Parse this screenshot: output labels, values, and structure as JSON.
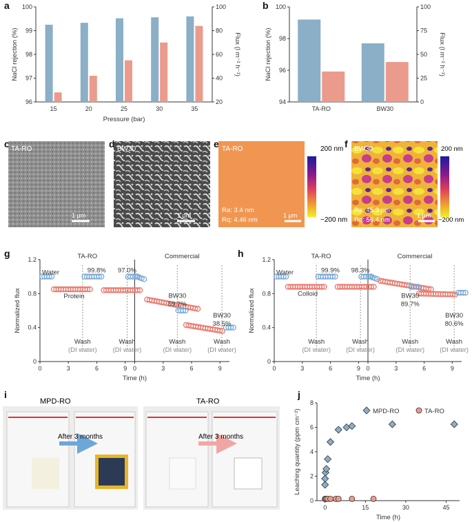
{
  "colors": {
    "blue": "#8aafc6",
    "salmon": "#eb9b8b",
    "water": "#7aa9d4",
    "protein": "#e8766a",
    "photo_bg": "#efefef"
  },
  "panel_labels": [
    "a",
    "b",
    "c",
    "d",
    "e",
    "f",
    "g",
    "h",
    "i",
    "j"
  ],
  "chart_data": [
    {
      "id": "a",
      "type": "bar",
      "categories": [
        "15",
        "20",
        "25",
        "30",
        "35"
      ],
      "xlabel": "Pressure (bar)",
      "ylabel": "NaCl rejection (%)",
      "ylim": [
        96,
        100
      ],
      "yticks": [
        "96",
        "97",
        "98",
        "99",
        "100"
      ],
      "y2label": "Flux (l m⁻² h⁻¹)",
      "y2lim": [
        20,
        100
      ],
      "y2ticks": [
        "20",
        "40",
        "60",
        "80",
        "100"
      ],
      "series": [
        {
          "name": "NaCl rejection",
          "axis": "left",
          "values": [
            99.25,
            99.33,
            99.52,
            99.56,
            99.6
          ]
        },
        {
          "name": "Flux",
          "axis": "right",
          "values": [
            28,
            42,
            55,
            70,
            84
          ]
        }
      ]
    },
    {
      "id": "b",
      "type": "bar",
      "categories": [
        "TA-RO",
        "BW30"
      ],
      "ylabel": "NaCl rejection (%)",
      "ylim": [
        94,
        100
      ],
      "yticks": [
        "94",
        "96",
        "98",
        "100"
      ],
      "y2label": "Flux (l m⁻² h⁻¹)",
      "y2lim": [
        0,
        100
      ],
      "y2ticks": [
        "0",
        "25",
        "50",
        "75",
        "100"
      ],
      "series": [
        {
          "name": "NaCl rejection",
          "axis": "left",
          "values": [
            99.2,
            97.7
          ]
        },
        {
          "name": "Flux",
          "axis": "right",
          "values": [
            32,
            42
          ]
        }
      ]
    },
    {
      "id": "g",
      "type": "scatter",
      "xlabel": "Time (h)",
      "ylabel": "Normalized flux",
      "ylim": [
        0,
        1.2
      ],
      "yticks": [
        "0",
        "0.4",
        "0.8",
        "1.2"
      ],
      "xticks": [
        "0",
        "3",
        "6",
        "9",
        "0",
        "3",
        "6",
        "9"
      ],
      "sections": [
        "TA-RO",
        "Commercial"
      ],
      "legend": [
        "Water",
        "Protein"
      ],
      "annotations": [
        "99.8%",
        "97.0%",
        "BW30",
        "59.2%",
        "BW30",
        "38.5%"
      ],
      "wash": [
        "Wash",
        "(DI water)"
      ],
      "series": [
        {
          "name": "Water",
          "values": [
            1.0,
            1.0,
            1.0
          ]
        },
        {
          "name": "Protein",
          "values": [
            0.85,
            0.84,
            0.83
          ]
        },
        {
          "name": "Commercial water",
          "values": [
            1.0,
            0.6,
            0.4
          ]
        },
        {
          "name": "Commercial protein",
          "values": [
            0.73,
            0.62,
            0.43,
            0.36
          ]
        }
      ]
    },
    {
      "id": "h",
      "type": "scatter",
      "xlabel": "Time (h)",
      "ylabel": "Normalized flux",
      "ylim": [
        0,
        1.2
      ],
      "yticks": [
        "0",
        "0.4",
        "0.8",
        "1.2"
      ],
      "xticks": [
        "0",
        "3",
        "6",
        "9",
        "0",
        "3",
        "6",
        "9"
      ],
      "sections": [
        "TA-RO",
        "Commercial"
      ],
      "legend": [
        "Water",
        "Colloid"
      ],
      "annotations": [
        "99.9%",
        "98.3%",
        "BW30",
        "89.7%",
        "BW30",
        "80.6%"
      ],
      "wash": [
        "Wash",
        "(DI water)"
      ],
      "series": [
        {
          "name": "Water",
          "values": [
            1.0,
            1.0,
            1.0
          ]
        },
        {
          "name": "Colloid",
          "values": [
            0.88,
            0.88,
            0.88
          ]
        },
        {
          "name": "Commercial water",
          "values": [
            1.0,
            0.88,
            0.81
          ]
        },
        {
          "name": "Commercial colloid",
          "values": [
            0.95,
            0.85,
            0.8,
            0.79
          ]
        }
      ]
    },
    {
      "id": "j",
      "type": "scatter",
      "xlabel": "Time (h)",
      "ylabel": "Leaching quantity (ppm cm⁻²)",
      "ylim": [
        0,
        8
      ],
      "yticks": [
        "0",
        "2",
        "4",
        "6",
        "8"
      ],
      "xlim": [
        -3,
        50
      ],
      "xticks": [
        "0",
        "15",
        "30",
        "45"
      ],
      "series": [
        {
          "name": "MPD-RO",
          "x": [
            0,
            0,
            0.2,
            0.5,
            1,
            2,
            5,
            8,
            10,
            25,
            48
          ],
          "y": [
            1.3,
            1.8,
            2.3,
            2.6,
            3.4,
            4.8,
            5.8,
            6.0,
            6.1,
            6.25,
            6.25
          ]
        },
        {
          "name": "TA-RO",
          "x": [
            0,
            0.2,
            0.5,
            1,
            2,
            4,
            5,
            10,
            18
          ],
          "y": [
            0.15,
            0.15,
            0.15,
            0.15,
            0.15,
            0.15,
            0.15,
            0.15,
            0.15
          ]
        }
      ]
    }
  ],
  "images": {
    "c": {
      "title": "TA-RO",
      "scale": "1 μm"
    },
    "d": {
      "title": "BW30",
      "scale": "1 μm"
    },
    "e": {
      "title": "TA-RO",
      "ra": "Ra: 3.4 nm",
      "rq": "Rq: 4.46 nm",
      "scale": "1 μm",
      "cmax": "200 nm",
      "cmin": "−200 nm"
    },
    "f": {
      "title": "BW30",
      "ra": "Ra: 45.3 nm",
      "rq": "Rq: 56.4 nm",
      "scale": "1 μm",
      "cmax": "200 nm",
      "cmin": "−200 nm"
    }
  },
  "photos": {
    "left_title": "MPD-RO",
    "right_title": "TA-RO",
    "left_arrow": "After 3 months",
    "right_arrow": "After 3 months"
  }
}
